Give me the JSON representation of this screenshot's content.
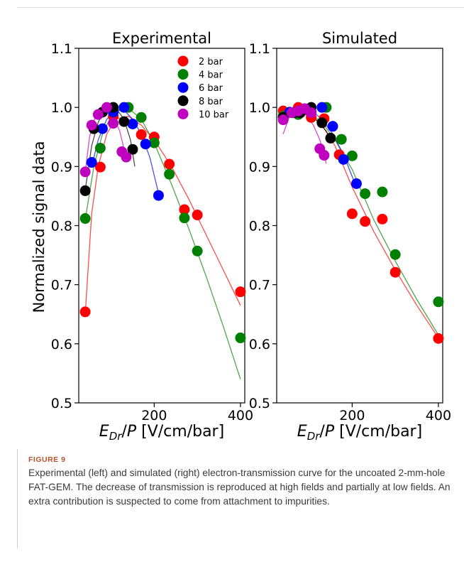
{
  "figure": {
    "label": "FIGURE 9",
    "caption": "Experimental (left) and simulated (right) electron-transmission curve for the uncoated 2-mm-hole FAT-GEM. The decrease of transmission is reproduced at high fields and partially at low fields. An extra contribution is suspected to come from attachment to impurities."
  },
  "chart_data": [
    {
      "type": "scatter",
      "title": "Experimental",
      "xlabel": "E_Dr/P [V/cm/bar]",
      "ylabel": "Normalized signal data",
      "xlim": [
        25,
        410
      ],
      "ylim": [
        0.5,
        1.1
      ],
      "xticks": [
        200,
        400
      ],
      "yticks": [
        0.5,
        0.6,
        0.7,
        0.8,
        0.9,
        1.0,
        1.1
      ],
      "grid": false,
      "legend_position": "top-right",
      "series": [
        {
          "name": "2 bar",
          "color": "#ff0000",
          "x": [
            40,
            75,
            105,
            170,
            200,
            235,
            270,
            300,
            400
          ],
          "y": [
            0.654,
            0.899,
            0.985,
            0.954,
            0.95,
            0.904,
            0.827,
            0.818,
            0.688
          ],
          "fit_x": [
            40,
            55,
            70,
            90,
            110,
            140,
            170,
            200,
            240,
            280,
            320,
            360,
            400
          ],
          "fit_y": [
            0.65,
            0.82,
            0.9,
            0.955,
            0.98,
            0.985,
            0.97,
            0.945,
            0.9,
            0.845,
            0.785,
            0.725,
            0.665
          ]
        },
        {
          "name": "4 bar",
          "color": "#008000",
          "x": [
            40,
            75,
            105,
            140,
            170,
            200,
            235,
            270,
            300,
            400
          ],
          "y": [
            0.812,
            0.931,
            0.994,
            1.0,
            0.983,
            0.94,
            0.887,
            0.813,
            0.757,
            0.61
          ],
          "fit_x": [
            40,
            60,
            80,
            100,
            120,
            140,
            170,
            200,
            240,
            280,
            320,
            360,
            400
          ],
          "fit_y": [
            0.81,
            0.9,
            0.955,
            0.985,
            0.998,
            0.999,
            0.98,
            0.94,
            0.87,
            0.795,
            0.715,
            0.63,
            0.54
          ]
        },
        {
          "name": "6 bar",
          "color": "#0000ff",
          "x": [
            55,
            80,
            105,
            130,
            150,
            180,
            210
          ],
          "y": [
            0.907,
            0.964,
            0.992,
            1.0,
            0.972,
            0.938,
            0.851
          ],
          "fit_x": [
            55,
            70,
            90,
            110,
            130,
            150,
            170,
            190,
            210
          ],
          "fit_y": [
            0.9,
            0.945,
            0.98,
            0.995,
            0.995,
            0.98,
            0.955,
            0.915,
            0.855
          ]
        },
        {
          "name": "8 bar",
          "color": "#000000",
          "x": [
            40,
            60,
            80,
            105,
            130,
            150
          ],
          "y": [
            0.859,
            0.964,
            0.992,
            1.0,
            0.976,
            0.929
          ],
          "fit_x": [
            40,
            55,
            70,
            85,
            100,
            115,
            130,
            145,
            155
          ],
          "fit_y": [
            0.86,
            0.935,
            0.975,
            0.995,
            1.0,
            0.995,
            0.98,
            0.945,
            0.9
          ]
        },
        {
          "name": "10 bar",
          "color": "#bf00bf",
          "x": [
            40,
            55,
            70,
            90,
            105,
            125,
            135
          ],
          "y": [
            0.891,
            0.97,
            0.988,
            1.0,
            0.973,
            0.925,
            0.916
          ],
          "fit_x": [
            40,
            50,
            60,
            75,
            90,
            105,
            120,
            135
          ],
          "fit_y": [
            0.89,
            0.95,
            0.978,
            0.995,
            0.998,
            0.985,
            0.96,
            0.915
          ]
        }
      ]
    },
    {
      "type": "scatter",
      "title": "Simulated",
      "xlabel": "E_Dr/P [V/cm/bar]",
      "ylabel": "",
      "xlim": [
        25,
        410
      ],
      "ylim": [
        0.5,
        1.1
      ],
      "xticks": [
        200,
        400
      ],
      "yticks": [
        0.5,
        0.6,
        0.7,
        0.8,
        0.9,
        1.0,
        1.1
      ],
      "grid": false,
      "series": [
        {
          "name": "2 bar",
          "color": "#ff0000",
          "x": [
            40,
            75,
            105,
            135,
            170,
            200,
            230,
            270,
            300,
            400
          ],
          "y": [
            0.994,
            1.0,
            0.983,
            0.981,
            0.92,
            0.82,
            0.807,
            0.811,
            0.721,
            0.609
          ],
          "fit_x": [
            40,
            70,
            100,
            130,
            160,
            200,
            250,
            300,
            350,
            400
          ],
          "fit_y": [
            0.998,
            0.998,
            0.99,
            0.97,
            0.935,
            0.865,
            0.79,
            0.725,
            0.665,
            0.61
          ]
        },
        {
          "name": "4 bar",
          "color": "#008000",
          "x": [
            40,
            75,
            105,
            140,
            175,
            200,
            230,
            270,
            300,
            400
          ],
          "y": [
            0.985,
            0.988,
            0.992,
            1.0,
            0.946,
            0.918,
            0.854,
            0.857,
            0.751,
            0.671
          ],
          "fit_x": [
            40,
            70,
            100,
            130,
            160,
            200,
            250,
            300,
            350,
            400
          ],
          "fit_y": [
            0.99,
            0.995,
            0.99,
            0.975,
            0.945,
            0.895,
            0.81,
            0.74,
            0.675,
            0.615
          ]
        },
        {
          "name": "6 bar",
          "color": "#0000ff",
          "x": [
            55,
            80,
            105,
            130,
            155,
            180,
            210
          ],
          "y": [
            0.992,
            0.994,
            0.992,
            1.0,
            0.968,
            0.912,
            0.871
          ],
          "fit_x": [
            55,
            80,
            105,
            130,
            155,
            180,
            210
          ],
          "fit_y": [
            0.995,
            0.998,
            0.995,
            0.98,
            0.955,
            0.92,
            0.865
          ]
        },
        {
          "name": "8 bar",
          "color": "#000000",
          "x": [
            40,
            65,
            80,
            105,
            130,
            150
          ],
          "y": [
            0.983,
            0.991,
            0.991,
            1.0,
            0.974,
            0.948
          ],
          "fit_x": [
            40,
            65,
            90,
            115,
            140,
            155
          ],
          "fit_y": [
            0.99,
            0.995,
            0.99,
            0.98,
            0.96,
            0.94
          ]
        },
        {
          "name": "10 bar",
          "color": "#bf00bf",
          "x": [
            40,
            60,
            75,
            90,
            105,
            125,
            135
          ],
          "y": [
            0.979,
            0.991,
            0.994,
            0.998,
            0.991,
            0.93,
            0.919
          ],
          "fit_x": [
            40,
            55,
            70,
            90,
            110,
            125,
            140
          ],
          "fit_y": [
            0.955,
            0.985,
            0.995,
            0.99,
            0.97,
            0.945,
            0.905
          ]
        }
      ]
    }
  ]
}
